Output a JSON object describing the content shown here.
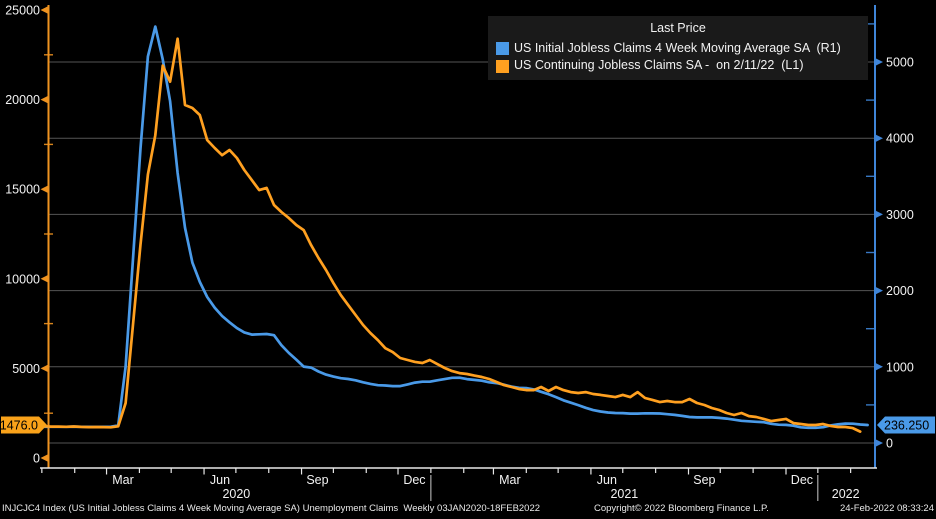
{
  "legend": {
    "title": "Last Price",
    "items": [
      {
        "label": "US Initial Jobless Claims 4 Week Moving Average SA  (R1)",
        "color": "#4a9ae8"
      },
      {
        "label": "US Continuing Jobless Claims SA -  on 2/11/22  (L1)",
        "color": "#ffa020"
      }
    ]
  },
  "footer": {
    "left": "INJCJC4 Index (US Initial Jobless Claims 4 Week Moving Average SA) Unemployment Claims  Weekly 03JAN2020-18FEB2022",
    "center": "Copyright© 2022 Bloomberg Finance L.P.",
    "right": "24-Feb-2022 08:33:24"
  },
  "chart_data": {
    "type": "line",
    "title": "Last Price",
    "x_range": "03JAN2020-18FEB2022",
    "frequency": "Weekly",
    "grid": true,
    "background": "#000000",
    "gridline_color": "#555555",
    "left_axis": {
      "label_side": "left",
      "color": "#ef9320",
      "text_color": "#f2f2f2",
      "ticks": [
        0,
        5000,
        10000,
        15000,
        20000,
        25000
      ],
      "minor_step": 2500,
      "min": 0,
      "max": 25000,
      "last_value_label": "1476.0",
      "last_value": 1476.0,
      "tag_color": "#f9a21a"
    },
    "right_axis": {
      "label_side": "right",
      "color": "#3f85d8",
      "text_color": "#f2f2f2",
      "ticks": [
        0,
        1000,
        2000,
        3000,
        4000,
        5000
      ],
      "minor_step": 500,
      "min": 0,
      "max": 5000,
      "last_value_label": "236.250",
      "last_value": 236.25,
      "tag_color": "#4a9ae8"
    },
    "x_axis": {
      "tick_color": "#e8e8e8",
      "years": [
        {
          "label": "2020",
          "start_week": -0.29,
          "end_week": 52.14
        },
        {
          "label": "2021",
          "start_week": 52.14,
          "end_week": 104.29
        },
        {
          "label": "2022",
          "start_week": 104.29,
          "end_week": 111.8
        }
      ],
      "month_ticks": [
        {
          "label": "",
          "week": -0.29
        },
        {
          "label": "",
          "week": 4.14
        },
        {
          "label": "Mar",
          "week": 8.43
        },
        {
          "label": "",
          "week": 12.86
        },
        {
          "label": "",
          "week": 17.14
        },
        {
          "label": "Jun",
          "week": 21.57
        },
        {
          "label": "",
          "week": 25.86
        },
        {
          "label": "",
          "week": 30.29
        },
        {
          "label": "Sep",
          "week": 34.71
        },
        {
          "label": "",
          "week": 39.0
        },
        {
          "label": "",
          "week": 43.43
        },
        {
          "label": "Dec",
          "week": 47.71
        },
        {
          "label": "",
          "week": 52.14
        },
        {
          "label": "",
          "week": 56.57
        },
        {
          "label": "Mar",
          "week": 60.57
        },
        {
          "label": "",
          "week": 65.0
        },
        {
          "label": "",
          "week": 69.29
        },
        {
          "label": "Jun",
          "week": 73.71
        },
        {
          "label": "",
          "week": 78.0
        },
        {
          "label": "",
          "week": 82.43
        },
        {
          "label": "Sep",
          "week": 86.86
        },
        {
          "label": "",
          "week": 91.14
        },
        {
          "label": "",
          "week": 95.57
        },
        {
          "label": "Dec",
          "week": 100.0
        },
        {
          "label": "",
          "week": 104.29
        },
        {
          "label": "",
          "week": 108.71
        }
      ]
    },
    "series": [
      {
        "name": "US Initial Jobless Claims 4 Week Moving Average SA  (R1)",
        "axis": "right",
        "color": "#4a9ae8",
        "units": "thousands",
        "values": [
          213,
          212,
          212,
          213,
          215,
          212,
          211,
          210,
          212,
          214,
          230,
          1000,
          2417,
          3867,
          5072,
          5464,
          5037,
          4486,
          3545,
          2826,
          2367,
          2114,
          1916,
          1775,
          1667,
          1584,
          1508,
          1452,
          1423,
          1427,
          1431,
          1415,
          1284,
          1181,
          1094,
          1003,
          990,
          938,
          898,
          872,
          851,
          840,
          823,
          797,
          776,
          758,
          755,
          747,
          747,
          769,
          793,
          804,
          805,
          823,
          839,
          856,
          857,
          839,
          828,
          818,
          796,
          786,
          765,
          740,
          724,
          721,
          704,
          672,
          640,
          603,
          560,
          529,
          497,
          462,
          432,
          413,
          400,
          394,
          393,
          386,
          386,
          390,
          388,
          387,
          378,
          369,
          356,
          341,
          336,
          336,
          336,
          329,
          320,
          306,
          291,
          285,
          278,
          273,
          252,
          240,
          238,
          227,
          206,
          200,
          199,
          208,
          231,
          246,
          255,
          253,
          243,
          236.25
        ]
      },
      {
        "name": "US Continuing Jobless Claims SA -  on 2/11/22  (L1)",
        "axis": "left",
        "color": "#ffa020",
        "units": "thousands",
        "values": [
          1770,
          1755,
          1752,
          1741,
          1757,
          1733,
          1726,
          1729,
          1722,
          1715,
          1770,
          3059,
          7446,
          11914,
          15819,
          18011,
          21900,
          21000,
          23400,
          19700,
          19530,
          19140,
          17740,
          17300,
          16900,
          17190,
          16740,
          16070,
          15510,
          14950,
          15070,
          14120,
          13730,
          13390,
          13000,
          12720,
          11880,
          11160,
          10490,
          9760,
          9090,
          8530,
          7980,
          7420,
          6970,
          6580,
          6130,
          5910,
          5580,
          5470,
          5360,
          5300,
          5470,
          5240,
          5020,
          4850,
          4740,
          4690,
          4600,
          4520,
          4410,
          4240,
          4070,
          3960,
          3850,
          3790,
          3790,
          3960,
          3740,
          3960,
          3790,
          3680,
          3630,
          3680,
          3570,
          3520,
          3460,
          3400,
          3520,
          3400,
          3680,
          3350,
          3240,
          3120,
          3180,
          3120,
          3120,
          3290,
          3070,
          2960,
          2790,
          2680,
          2510,
          2400,
          2510,
          2340,
          2290,
          2180,
          2060,
          2120,
          2180,
          1950,
          1900,
          1840,
          1840,
          1900,
          1790,
          1730,
          1730,
          1670,
          1476
        ]
      }
    ]
  }
}
